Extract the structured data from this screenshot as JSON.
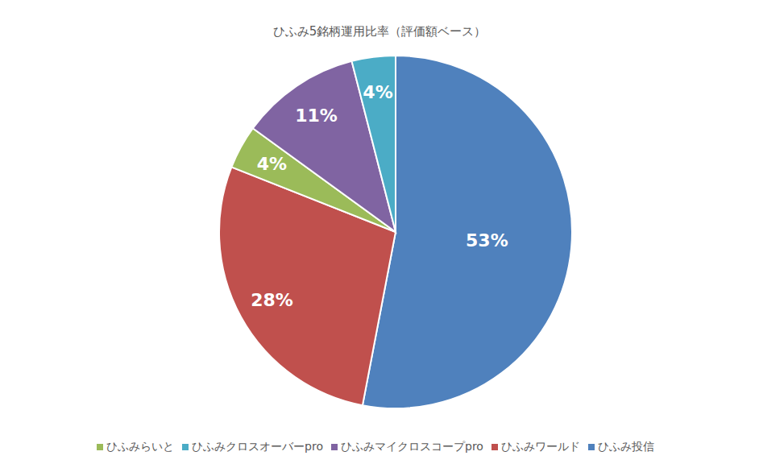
{
  "chart_data": {
    "type": "pie",
    "title": "ひふみ5銘柄運用比率（評価額ベース）",
    "categories": [
      "ひふみ投信",
      "ひふみワールド",
      "ひふみらいと",
      "ひふみマイクロスコープpro",
      "ひふみクロスオーバーpro"
    ],
    "values": [
      53,
      28,
      4,
      11,
      4
    ],
    "value_labels": [
      "53%",
      "28%",
      "4%",
      "11%",
      "4%"
    ],
    "colors": [
      "#4f81bd",
      "#c0504d",
      "#9bbb59",
      "#8064a2",
      "#4bacc6"
    ],
    "data_labels": true,
    "legend": "bottom"
  }
}
